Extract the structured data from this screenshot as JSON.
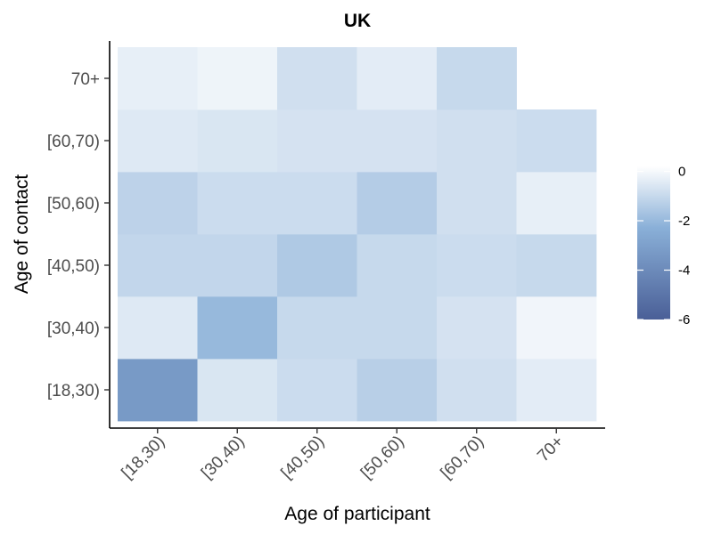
{
  "chart_data": {
    "type": "heatmap",
    "title": "UK",
    "xlabel": "Age of participant",
    "ylabel": "Age of contact",
    "x_categories": [
      "[18,30)",
      "[30,40)",
      "[40,50)",
      "[50,60)",
      "[60,70)",
      "70+"
    ],
    "y_categories": [
      "[18,30)",
      "[30,40)",
      "[40,50)",
      "[50,60)",
      "[60,70)",
      "70+"
    ],
    "values": [
      [
        -3.3,
        -0.6,
        -0.9,
        -1.3,
        -0.8,
        -0.4
      ],
      [
        -0.5,
        -2.0,
        -1.0,
        -1.0,
        -0.7,
        -0.1
      ],
      [
        -1.1,
        -1.1,
        -1.5,
        -1.0,
        -0.9,
        -1.0
      ],
      [
        -1.2,
        -0.9,
        -0.9,
        -1.4,
        -0.8,
        -0.3
      ],
      [
        -0.5,
        -0.6,
        -0.7,
        -0.7,
        -0.8,
        -0.9
      ],
      [
        -0.3,
        -0.15,
        -0.8,
        -0.4,
        -1.0,
        null
      ]
    ],
    "value_note": "values[i][j]: i indexes y_categories, j indexes x_categories",
    "legend": {
      "position": "right",
      "range": [
        -6,
        0.2
      ],
      "breaks": [
        0,
        -2,
        -4,
        -6
      ],
      "break_labels": [
        "0",
        "-2",
        "-4",
        "-6"
      ],
      "colors": {
        "low": "#4a5f97",
        "mid": "#8ab0d8",
        "high": "#ffffff"
      }
    },
    "grid": false
  }
}
